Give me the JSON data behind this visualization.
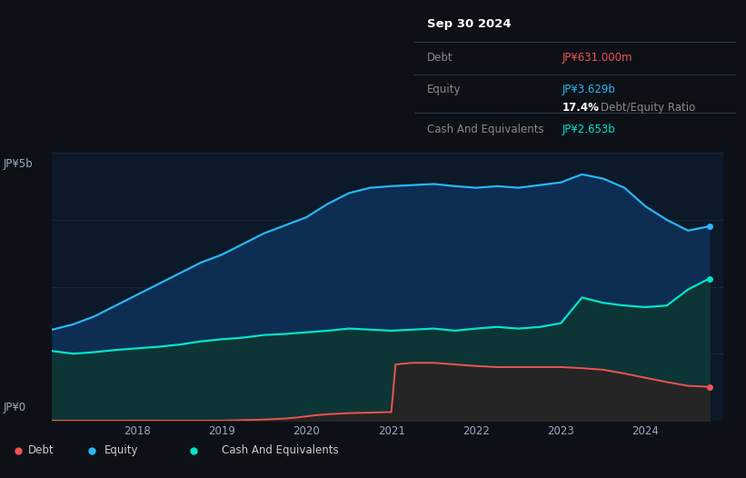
{
  "background_color": "#0d1117",
  "plot_bg_color": "#0b1929",
  "title_box": {
    "date": "Sep 30 2024",
    "debt_label": "Debt",
    "debt_value": "JP¥631.000m",
    "equity_label": "Equity",
    "equity_value": "JP¥3.629b",
    "ratio": "17.4%",
    "ratio_label": "Debt/Equity Ratio",
    "cash_label": "Cash And Equivalents",
    "cash_value": "JP¥2.653b"
  },
  "y_label_top": "JP¥5b",
  "y_label_bottom": "JP¥0",
  "x_ticks": [
    "2018",
    "2019",
    "2020",
    "2021",
    "2022",
    "2023",
    "2024"
  ],
  "x_tick_pos": [
    2018,
    2019,
    2020,
    2021,
    2022,
    2023,
    2024
  ],
  "equity_color": "#29b6f6",
  "equity_fill": "#0d2d52",
  "cash_color": "#00e5cc",
  "cash_fill": "#0d3535",
  "debt_color": "#ef5350",
  "debt_fill": "#252525",
  "legend_items": [
    {
      "label": "Debt",
      "color": "#ef5350"
    },
    {
      "label": "Equity",
      "color": "#29b6f6"
    },
    {
      "label": "Cash And Equivalents",
      "color": "#00e5cc"
    }
  ],
  "equity_data": {
    "x": [
      2017.0,
      2017.25,
      2017.5,
      2017.75,
      2018.0,
      2018.25,
      2018.5,
      2018.75,
      2019.0,
      2019.25,
      2019.5,
      2019.75,
      2020.0,
      2020.25,
      2020.5,
      2020.75,
      2021.0,
      2021.25,
      2021.5,
      2021.75,
      2022.0,
      2022.25,
      2022.5,
      2022.75,
      2023.0,
      2023.25,
      2023.5,
      2023.75,
      2024.0,
      2024.25,
      2024.5,
      2024.75
    ],
    "y": [
      1.7,
      1.8,
      1.95,
      2.15,
      2.35,
      2.55,
      2.75,
      2.95,
      3.1,
      3.3,
      3.5,
      3.65,
      3.8,
      4.05,
      4.25,
      4.35,
      4.38,
      4.4,
      4.42,
      4.38,
      4.35,
      4.38,
      4.35,
      4.4,
      4.45,
      4.6,
      4.52,
      4.35,
      4.0,
      3.75,
      3.55,
      3.629
    ]
  },
  "cash_data": {
    "x": [
      2017.0,
      2017.25,
      2017.5,
      2017.75,
      2018.0,
      2018.25,
      2018.5,
      2018.75,
      2019.0,
      2019.25,
      2019.5,
      2019.75,
      2020.0,
      2020.25,
      2020.5,
      2020.75,
      2021.0,
      2021.25,
      2021.5,
      2021.75,
      2022.0,
      2022.25,
      2022.5,
      2022.75,
      2023.0,
      2023.25,
      2023.5,
      2023.75,
      2024.0,
      2024.25,
      2024.5,
      2024.75
    ],
    "y": [
      1.3,
      1.25,
      1.28,
      1.32,
      1.35,
      1.38,
      1.42,
      1.48,
      1.52,
      1.55,
      1.6,
      1.62,
      1.65,
      1.68,
      1.72,
      1.7,
      1.68,
      1.7,
      1.72,
      1.68,
      1.72,
      1.75,
      1.72,
      1.75,
      1.82,
      2.3,
      2.2,
      2.15,
      2.12,
      2.15,
      2.45,
      2.653
    ]
  },
  "debt_data": {
    "x": [
      2017.0,
      2017.25,
      2017.5,
      2017.75,
      2018.0,
      2018.25,
      2018.5,
      2018.75,
      2019.0,
      2019.25,
      2019.5,
      2019.75,
      2019.9,
      2020.0,
      2020.1,
      2020.25,
      2020.5,
      2020.75,
      2021.0,
      2021.05,
      2021.25,
      2021.5,
      2021.75,
      2022.0,
      2022.25,
      2022.5,
      2022.75,
      2023.0,
      2023.25,
      2023.5,
      2023.75,
      2024.0,
      2024.25,
      2024.5,
      2024.75
    ],
    "y": [
      0.0,
      0.0,
      0.0,
      0.0,
      0.0,
      0.0,
      0.0,
      0.0,
      0.0,
      0.01,
      0.02,
      0.04,
      0.06,
      0.08,
      0.1,
      0.12,
      0.14,
      0.15,
      0.16,
      1.05,
      1.08,
      1.08,
      1.05,
      1.02,
      1.0,
      1.0,
      1.0,
      1.0,
      0.98,
      0.95,
      0.88,
      0.8,
      0.72,
      0.65,
      0.631
    ]
  },
  "ylim": [
    0,
    5.0
  ],
  "xlim": [
    2017.0,
    2024.92
  ],
  "grid_color": "#1e2d3d",
  "grid_y": [
    0,
    1.25,
    2.5,
    3.75,
    5.0
  ]
}
